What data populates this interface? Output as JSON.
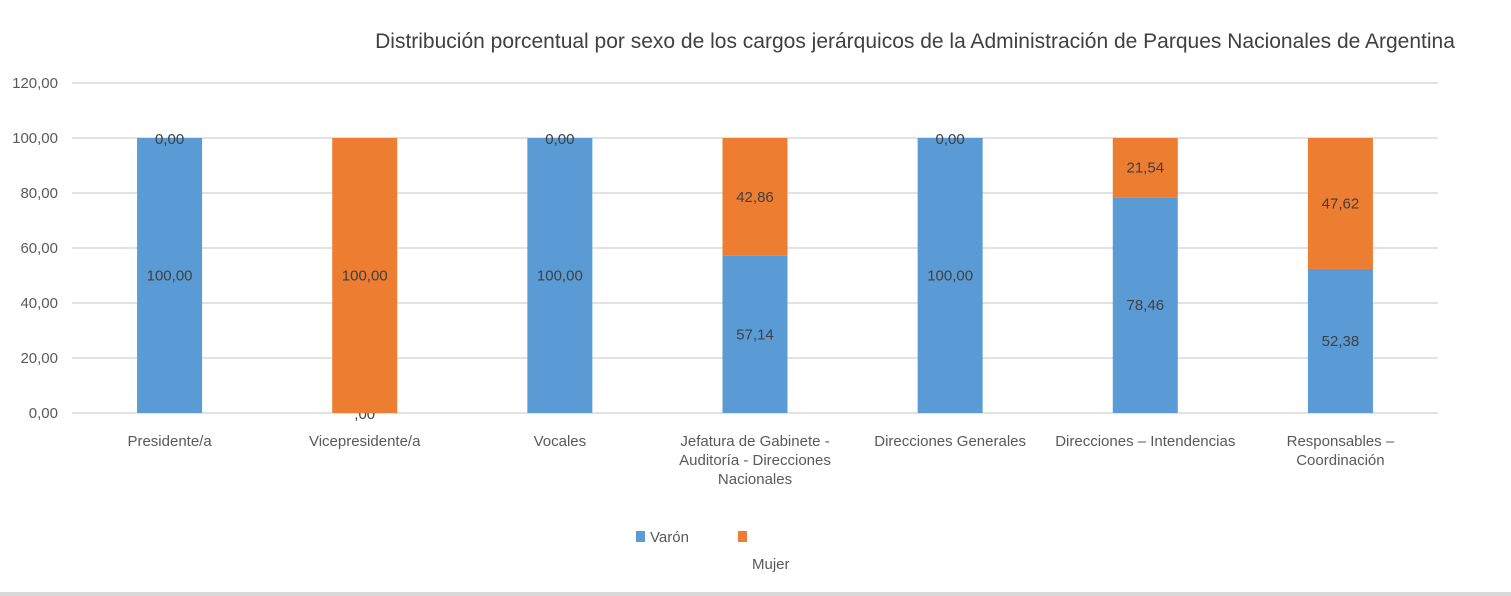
{
  "chart_data": {
    "type": "bar",
    "stacked": true,
    "title": "Distribución porcentual por sexo de los cargos jerárquicos de la Administración de Parques Nacionales de Argentina",
    "xlabel": "",
    "ylabel": "",
    "ylim": [
      0,
      120
    ],
    "yticks": [
      "0,00",
      "20,00",
      "40,00",
      "60,00",
      "80,00",
      "100,00",
      "120,00"
    ],
    "ytick_values": [
      0,
      20,
      40,
      60,
      80,
      100,
      120
    ],
    "grid": true,
    "legend_position": "bottom",
    "categories": [
      [
        "Presidente/a"
      ],
      [
        "Vicepresidente/a"
      ],
      [
        "Vocales"
      ],
      [
        "Jefatura de Gabinete -",
        "Auditoría - Direcciones",
        "Nacionales"
      ],
      [
        "Direcciones Generales"
      ],
      [
        "Direcciones – Intendencias"
      ],
      [
        "Responsables –",
        "Coordinación"
      ]
    ],
    "series": [
      {
        "name": "Varón",
        "color": "#5b9bd5",
        "values": [
          100,
          0,
          100,
          57.14,
          100,
          78.46,
          52.38
        ],
        "labels": [
          "100,00",
          ",00",
          "100,00",
          "57,14",
          "100,00",
          "78,46",
          "52,38"
        ]
      },
      {
        "name": "Mujer",
        "color": "#ed7d31",
        "values": [
          0,
          100,
          0,
          42.86,
          0,
          21.54,
          47.62
        ],
        "labels": [
          "0,00",
          "100,00",
          "0,00",
          "42,86",
          "0,00",
          "21,54",
          "47,62"
        ]
      }
    ]
  }
}
